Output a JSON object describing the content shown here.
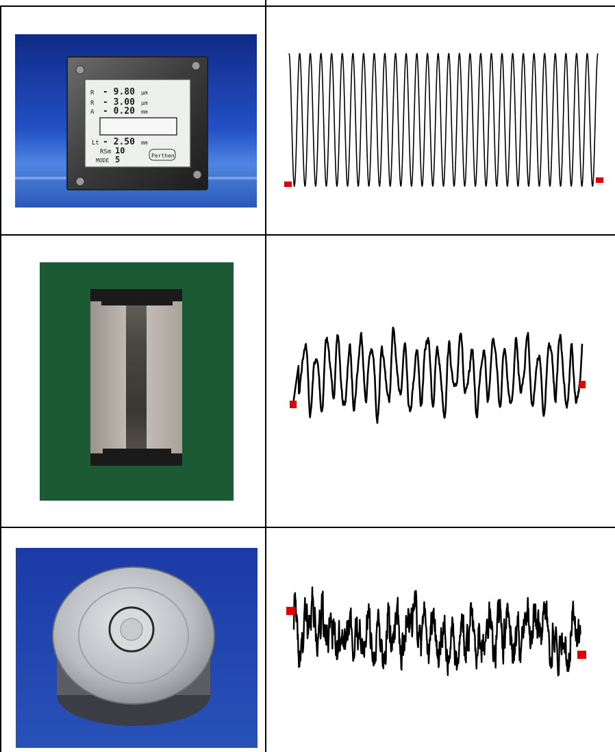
{
  "rows": [
    {
      "photo": {
        "subject": "roughness standard with LCD display",
        "background_color": "#1d3a9a",
        "display_lines": [
          {
            "label": "Ra",
            "value": "9.80",
            "unit": "µm"
          },
          {
            "label": "Rz",
            "value": "3.00",
            "unit": "µm"
          },
          {
            "label": "Rt",
            "value": "0.20",
            "unit": "mm"
          },
          {
            "label": "Lt",
            "value": "2.50",
            "unit": "mm"
          },
          {
            "label": "RSm",
            "value": "10",
            "unit": ""
          },
          {
            "label": "MODE",
            "value": "5",
            "unit": ""
          }
        ],
        "brand": "Perthen"
      },
      "profile": {
        "type": "periodic sine",
        "cycles": 29,
        "marker_color": "#e00000"
      }
    },
    {
      "photo": {
        "subject": "ground roughness specimen block",
        "background_color": "#1c5e3a"
      },
      "profile": {
        "type": "irregular ground surface",
        "marker_color": "#e00000"
      }
    },
    {
      "photo": {
        "subject": "round turned/lapped specimen",
        "background_color": "#1a3da0"
      },
      "profile": {
        "type": "irregular fine random",
        "marker_color": "#e00000"
      }
    }
  ]
}
